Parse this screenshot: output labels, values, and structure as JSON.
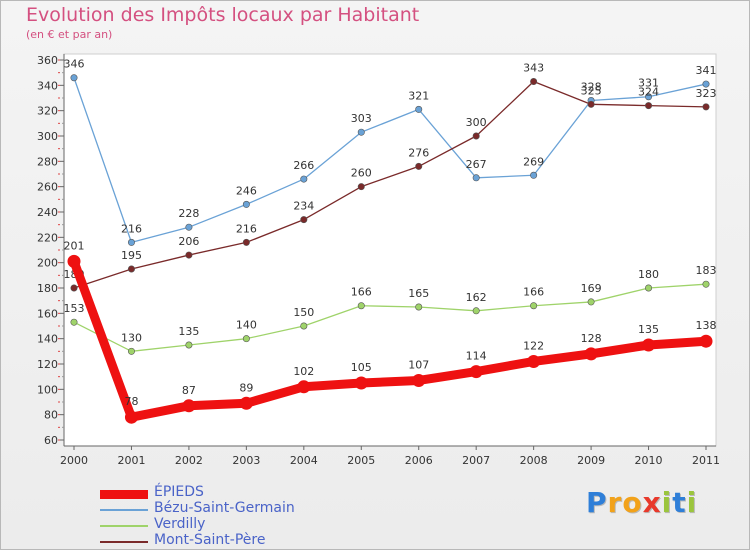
{
  "title": "Evolution des Impôts locaux par Habitant",
  "subtitle": "(en € et par an)",
  "logo": {
    "text": "Proxiti",
    "letters": [
      "P",
      "r",
      "o",
      "x",
      "i",
      "t",
      "i"
    ],
    "colors": [
      "#2f7fd8",
      "#f2a21a",
      "#f2a21a",
      "#e8392b",
      "#9bc53d",
      "#2f7fd8",
      "#9bc53d"
    ]
  },
  "chart_data": {
    "type": "line",
    "title": "Evolution des Impôts locaux par Habitant",
    "subtitle": "(en € et par an)",
    "xlabel": "",
    "ylabel": "",
    "categories": [
      "2000",
      "2001",
      "2002",
      "2003",
      "2004",
      "2005",
      "2006",
      "2007",
      "2008",
      "2009",
      "2010",
      "2011"
    ],
    "ylim": [
      60,
      360
    ],
    "yticks": [
      60,
      80,
      100,
      120,
      140,
      160,
      180,
      200,
      220,
      240,
      260,
      280,
      300,
      320,
      340,
      360
    ],
    "grid": false,
    "legend_position": "bottom-left",
    "series": [
      {
        "name": "ÉPIEDS",
        "color": "#ee1111",
        "values": [
          201,
          78,
          87,
          89,
          102,
          105,
          107,
          114,
          122,
          128,
          135,
          138
        ]
      },
      {
        "name": "Bézu-Saint-Germain",
        "color": "#6aa2d6",
        "values": [
          346,
          216,
          228,
          246,
          266,
          303,
          321,
          267,
          269,
          328,
          331,
          341
        ]
      },
      {
        "name": "Verdilly",
        "color": "#9fd36a",
        "values": [
          153,
          130,
          135,
          140,
          150,
          166,
          165,
          162,
          166,
          169,
          180,
          183
        ]
      },
      {
        "name": "Mont-Saint-Père",
        "color": "#7a2a2a",
        "values": [
          180,
          195,
          206,
          216,
          234,
          260,
          276,
          300,
          343,
          325,
          324,
          323
        ]
      }
    ]
  }
}
